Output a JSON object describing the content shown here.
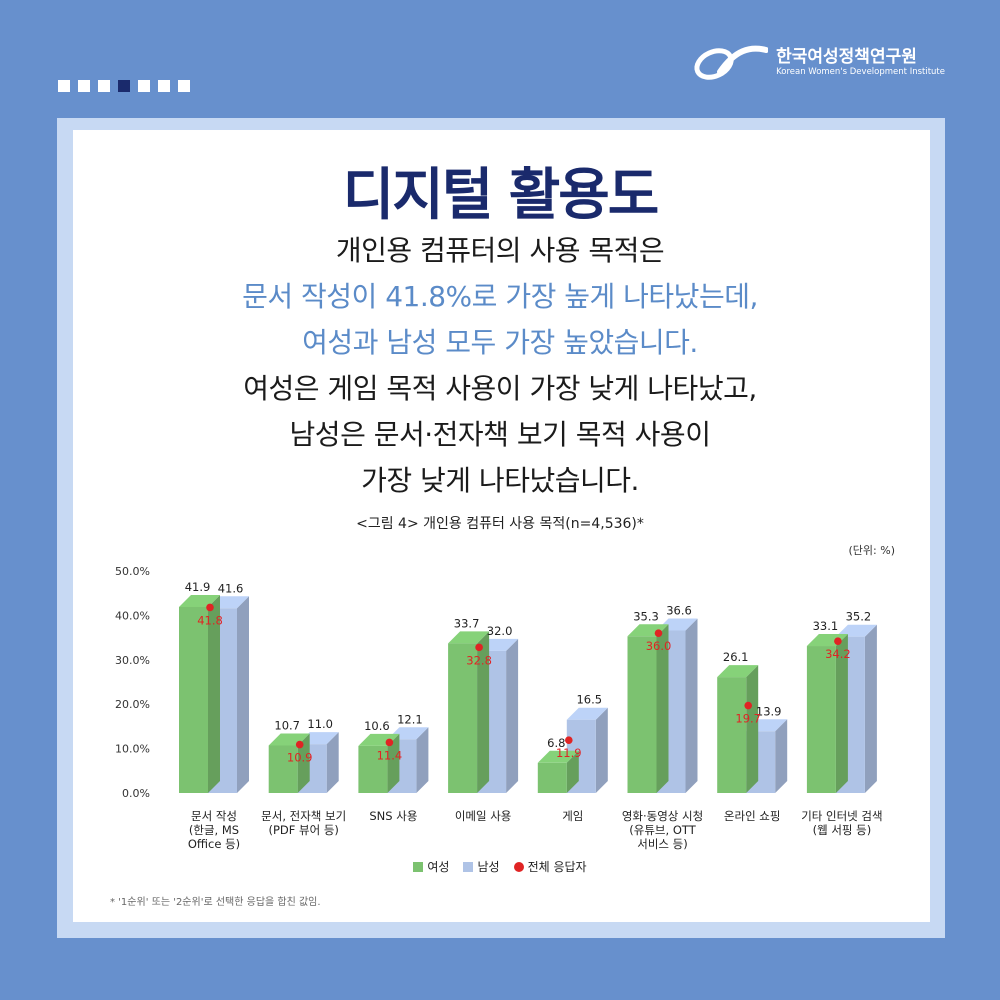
{
  "header": {
    "org_name_ko": "한국여성정책연구원",
    "org_name_en": "Korean Women's Development Institute"
  },
  "title": "디지털 활용도",
  "body_lines": [
    {
      "text": "개인용 컴퓨터의 사용 목적은",
      "style": "dark"
    },
    {
      "text": "문서 작성이 41.8%로 가장 높게 나타났는데,",
      "style": "blue"
    },
    {
      "text": "여성과 남성 모두 가장 높았습니다.",
      "style": "blue"
    },
    {
      "text": "여성은 게임 목적 사용이 가장 낮게 나타났고,",
      "style": "dark"
    },
    {
      "text": "남성은 문서·전자책 보기 목적 사용이",
      "style": "dark"
    },
    {
      "text": "가장 낮게 나타났습니다.",
      "style": "dark"
    }
  ],
  "chart_data": {
    "type": "bar",
    "title": "<그림 4> 개인용 컴퓨터 사용 목적(n=4,536)*",
    "unit": "(단위: %)",
    "categories": [
      [
        "문서 작성",
        "(한글, MS",
        "Office 등)"
      ],
      [
        "문서, 전자책 보기",
        "(PDF 뷰어 등)"
      ],
      [
        "SNS 사용"
      ],
      [
        "이메일 사용"
      ],
      [
        "게임"
      ],
      [
        "영화·동영상 시청",
        "(유튜브, OTT",
        "서비스 등)"
      ],
      [
        "온라인 쇼핑"
      ],
      [
        "기타 인터넷 검색",
        "(웹 서핑 등)"
      ]
    ],
    "series": [
      {
        "name": "여성",
        "color": "#7cc270",
        "values": [
          41.9,
          10.7,
          10.6,
          33.7,
          6.8,
          35.3,
          26.1,
          33.1
        ]
      },
      {
        "name": "남성",
        "color": "#afc3e6",
        "values": [
          41.6,
          11.0,
          12.1,
          32.0,
          16.5,
          36.6,
          13.9,
          35.2
        ]
      },
      {
        "name": "전체 응답자",
        "color": "#e02424",
        "marker": "dot",
        "values": [
          41.8,
          10.9,
          11.4,
          32.8,
          11.9,
          36.0,
          19.7,
          34.2
        ]
      }
    ],
    "y_ticks": [
      "50.0%",
      "40.0%",
      "30.0%",
      "20.0%",
      "10.0%",
      "0.0%"
    ],
    "ylim": [
      0,
      50
    ],
    "legend_position": "bottom-center"
  },
  "footnote": "* '1순위' 또는 '2순위'로 선택한 응답을 합친 값임."
}
